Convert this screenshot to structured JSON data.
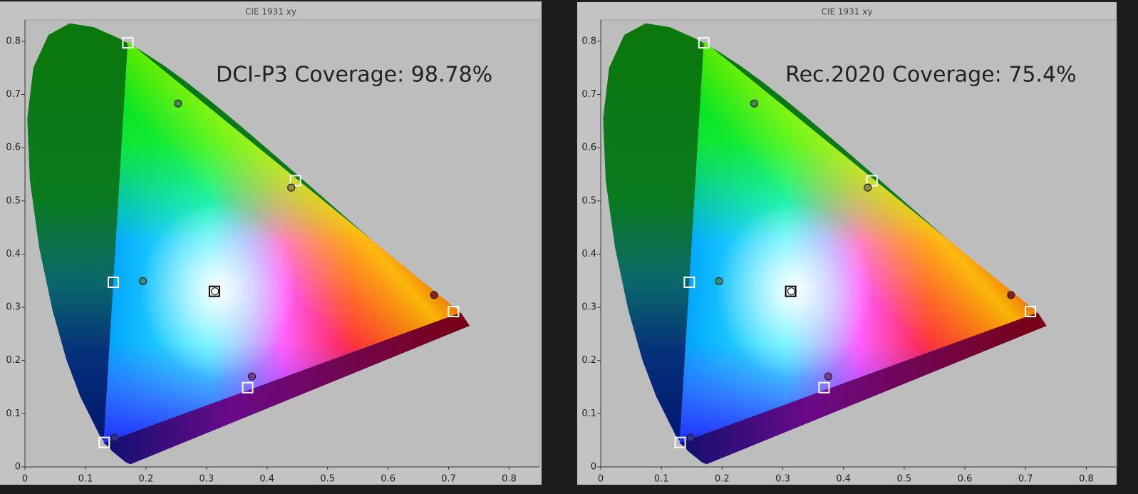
{
  "chart_data": [
    {
      "type": "scatter",
      "title": "CIE 1931 xy",
      "annotation": "DCI-P3 Coverage: 98.78%",
      "xlim": [
        0,
        0.85
      ],
      "ylim": [
        0,
        0.84
      ],
      "xticks": [
        0,
        0.1,
        0.2,
        0.3,
        0.4,
        0.5,
        0.6,
        0.7,
        0.8
      ],
      "yticks": [
        0,
        0.1,
        0.2,
        0.3,
        0.4,
        0.5,
        0.6,
        0.7,
        0.8
      ],
      "series": [
        {
          "marker": "square",
          "colors": [
            "#ffffff",
            "#ffffff",
            "#ffffff",
            "#ffffff",
            "#ffffff",
            "#ffffff",
            "#000000"
          ],
          "x": [
            0.708,
            0.17,
            0.131,
            0.146,
            0.368,
            0.447,
            0.313
          ],
          "values": [
            0.292,
            0.797,
            0.046,
            0.347,
            0.149,
            0.538,
            0.33
          ]
        },
        {
          "marker": "circle",
          "colors": [
            "#8b1f1f",
            "#3d8f3d",
            "#3030a0",
            "#2f8f7f",
            "#7b3b93",
            "#8f8f3f",
            "#ffffff"
          ],
          "x": [
            0.676,
            0.253,
            0.148,
            0.195,
            0.375,
            0.44,
            0.314
          ],
          "values": [
            0.323,
            0.683,
            0.055,
            0.349,
            0.17,
            0.525,
            0.33
          ]
        }
      ]
    },
    {
      "type": "scatter",
      "title": "CIE 1931 xy",
      "annotation": "Rec.2020 Coverage: 75.4%",
      "xlim": [
        0,
        0.85
      ],
      "ylim": [
        0,
        0.84
      ],
      "xticks": [
        0,
        0.1,
        0.2,
        0.3,
        0.4,
        0.5,
        0.6,
        0.7,
        0.8
      ],
      "yticks": [
        0,
        0.1,
        0.2,
        0.3,
        0.4,
        0.5,
        0.6,
        0.7,
        0.8
      ],
      "series": [
        {
          "marker": "square",
          "colors": [
            "#ffffff",
            "#ffffff",
            "#ffffff",
            "#ffffff",
            "#ffffff",
            "#ffffff",
            "#000000"
          ],
          "x": [
            0.708,
            0.17,
            0.131,
            0.146,
            0.368,
            0.447,
            0.313
          ],
          "values": [
            0.292,
            0.797,
            0.046,
            0.347,
            0.149,
            0.538,
            0.33
          ]
        },
        {
          "marker": "circle",
          "colors": [
            "#8b1f1f",
            "#3d8f3d",
            "#3030a0",
            "#2f8f7f",
            "#7b3b93",
            "#8f8f3f",
            "#ffffff"
          ],
          "x": [
            0.676,
            0.253,
            0.148,
            0.195,
            0.375,
            0.44,
            0.314
          ],
          "values": [
            0.323,
            0.683,
            0.055,
            0.349,
            0.17,
            0.525,
            0.33
          ]
        }
      ]
    }
  ]
}
